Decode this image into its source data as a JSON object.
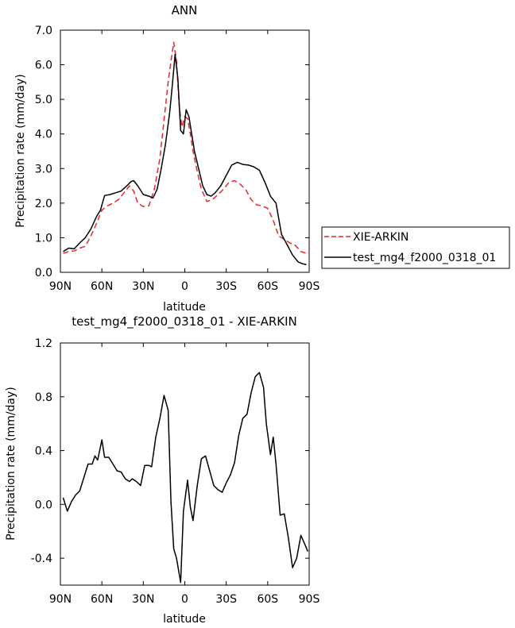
{
  "chart_data": [
    {
      "type": "line",
      "title": "ANN",
      "xlabel": "latitude",
      "ylabel": "Precipitation rate (mm/day)",
      "xlim": [
        90,
        -90
      ],
      "ylim": [
        0,
        7
      ],
      "xticks": [
        90,
        60,
        30,
        0,
        -30,
        -60,
        -90
      ],
      "xtick_labels": [
        "90N",
        "60N",
        "30N",
        "0",
        "30S",
        "60S",
        "90S"
      ],
      "yticks": [
        0,
        1,
        2,
        3,
        4,
        5,
        6,
        7
      ],
      "ytick_labels": [
        "0.0",
        "1.0",
        "2.0",
        "3.0",
        "4.0",
        "5.0",
        "6.0",
        "7.0"
      ],
      "legend": {
        "placement": "outside-right"
      },
      "series": [
        {
          "name": "XIE-ARKIN",
          "color": "#e8262b",
          "dash": "dashed",
          "x": [
            88,
            84,
            80,
            76,
            72,
            68,
            64,
            60,
            56,
            52,
            48,
            44,
            40,
            37,
            34,
            30,
            26,
            22,
            18,
            15,
            12,
            10,
            8,
            6,
            4,
            2,
            0,
            -2,
            -4,
            -6,
            -8,
            -12,
            -16,
            -20,
            -24,
            -28,
            -32,
            -36,
            -40,
            -44,
            -48,
            -52,
            -56,
            -60,
            -64,
            -68,
            -72,
            -76,
            -80,
            -84,
            -88
          ],
          "values": [
            0.55,
            0.6,
            0.62,
            0.7,
            0.75,
            1.05,
            1.4,
            1.8,
            1.92,
            2.0,
            2.1,
            2.3,
            2.5,
            2.35,
            2.0,
            1.9,
            1.92,
            2.4,
            3.3,
            4.4,
            5.5,
            6.1,
            6.65,
            6.1,
            4.8,
            4.2,
            4.5,
            4.45,
            4.0,
            3.5,
            3.1,
            2.4,
            2.05,
            2.1,
            2.25,
            2.4,
            2.6,
            2.65,
            2.55,
            2.4,
            2.1,
            1.95,
            1.92,
            1.85,
            1.5,
            1.05,
            0.95,
            0.85,
            0.78,
            0.6,
            0.55
          ]
        },
        {
          "name": "test_mg4_f2000_0318_01",
          "color": "#000000",
          "dash": "solid",
          "x": [
            88,
            84,
            80,
            76,
            72,
            68,
            64,
            61,
            58,
            54,
            50,
            46,
            42,
            39,
            37,
            34,
            30,
            26,
            23,
            20,
            17,
            14,
            11,
            9,
            7,
            5,
            3,
            1,
            -1,
            -3,
            -5,
            -7,
            -10,
            -13,
            -16,
            -19,
            -22,
            -26,
            -30,
            -34,
            -38,
            -42,
            -46,
            -50,
            -54,
            -58,
            -62,
            -66,
            -70,
            -74,
            -78,
            -82,
            -85,
            -88
          ],
          "values": [
            0.6,
            0.7,
            0.68,
            0.85,
            1.0,
            1.25,
            1.6,
            1.8,
            2.22,
            2.25,
            2.3,
            2.35,
            2.5,
            2.62,
            2.65,
            2.5,
            2.25,
            2.2,
            2.15,
            2.4,
            3.0,
            3.7,
            4.6,
            5.4,
            6.3,
            5.6,
            4.1,
            4.0,
            4.7,
            4.5,
            4.0,
            3.5,
            3.0,
            2.5,
            2.25,
            2.2,
            2.3,
            2.5,
            2.8,
            3.1,
            3.18,
            3.12,
            3.1,
            3.05,
            2.95,
            2.6,
            2.2,
            2.0,
            1.1,
            0.8,
            0.5,
            0.3,
            0.25,
            0.22
          ]
        }
      ]
    },
    {
      "type": "line",
      "title": "test_mg4_f2000_0318_01 - XIE-ARKIN",
      "xlabel": "latitude",
      "ylabel": "Precipitation rate (mm/day)",
      "xlim": [
        90,
        -90
      ],
      "ylim": [
        -0.6,
        1.2
      ],
      "xticks": [
        90,
        60,
        30,
        0,
        -30,
        -60,
        -90
      ],
      "xtick_labels": [
        "90N",
        "60N",
        "30N",
        "0",
        "30S",
        "60S",
        "90S"
      ],
      "yticks": [
        -0.4,
        0,
        0.4,
        0.8,
        1.2
      ],
      "ytick_labels": [
        "-0.4",
        "0.0",
        "0.4",
        "0.8",
        "1.2"
      ],
      "series": [
        {
          "color": "#000000",
          "dash": "solid",
          "x": [
            88,
            85,
            82,
            79,
            76,
            73,
            70,
            67,
            65,
            63,
            60,
            58,
            55,
            52,
            49,
            46,
            43,
            40,
            38,
            35,
            32,
            29,
            26,
            24,
            21,
            18,
            15,
            12,
            10,
            8,
            6,
            3,
            1,
            -2,
            -4,
            -6,
            -9,
            -12,
            -15,
            -18,
            -21,
            -24,
            -27,
            -30,
            -33,
            -36,
            -39,
            -42,
            -45,
            -48,
            -51,
            -54,
            -57,
            -59,
            -62,
            -64,
            -66,
            -69,
            -72,
            -75,
            -78,
            -81,
            -84,
            -87,
            -89
          ],
          "values": [
            0.05,
            -0.05,
            0.02,
            0.07,
            0.1,
            0.2,
            0.3,
            0.3,
            0.36,
            0.33,
            0.48,
            0.35,
            0.35,
            0.3,
            0.25,
            0.24,
            0.19,
            0.17,
            0.19,
            0.17,
            0.14,
            0.29,
            0.29,
            0.28,
            0.5,
            0.64,
            0.81,
            0.7,
            0.02,
            -0.33,
            -0.4,
            -0.58,
            -0.05,
            0.18,
            -0.02,
            -0.12,
            0.14,
            0.34,
            0.36,
            0.25,
            0.14,
            0.11,
            0.09,
            0.16,
            0.22,
            0.31,
            0.51,
            0.64,
            0.67,
            0.83,
            0.95,
            0.98,
            0.87,
            0.6,
            0.37,
            0.5,
            0.3,
            -0.08,
            -0.07,
            -0.25,
            -0.47,
            -0.4,
            -0.23,
            -0.3,
            -0.35
          ]
        }
      ]
    }
  ]
}
